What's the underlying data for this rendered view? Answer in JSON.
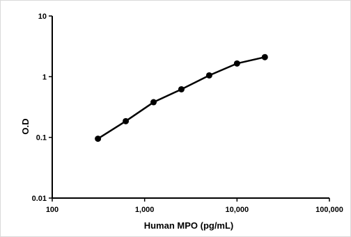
{
  "chart_data": {
    "type": "line",
    "title": "",
    "xlabel": "Human MPO (pg/mL)",
    "ylabel": "O.D",
    "x_scale": "log",
    "y_scale": "log",
    "xlim": [
      100,
      100000
    ],
    "ylim": [
      0.01,
      10
    ],
    "x_ticks": [
      "100",
      "1,000",
      "10,000",
      "100,000"
    ],
    "y_ticks": [
      "0.01",
      "0.1",
      "1",
      "10"
    ],
    "grid": false,
    "legend": "none",
    "series": [
      {
        "x": [
          312.5,
          625,
          1250,
          2500,
          5000,
          10000,
          20000
        ],
        "y": [
          0.095,
          0.185,
          0.38,
          0.62,
          1.05,
          1.65,
          2.1
        ]
      }
    ],
    "colors": {
      "line": "#000000",
      "marker": "#000000",
      "axis": "#000000"
    }
  }
}
